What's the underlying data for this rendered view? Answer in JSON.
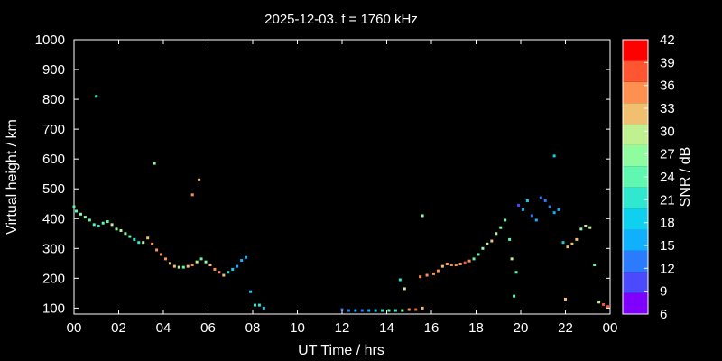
{
  "chart_data": {
    "type": "scatter",
    "title": "2025-12-03. f = 1760 kHz",
    "xlabel": "UT Time / hrs",
    "ylabel": "Virtual height / km",
    "xlim": [
      0,
      24
    ],
    "ylim": [
      80,
      1000
    ],
    "xticks": [
      "00",
      "02",
      "04",
      "06",
      "08",
      "10",
      "12",
      "14",
      "16",
      "18",
      "20",
      "22",
      "00"
    ],
    "yticks": [
      "100",
      "200",
      "300",
      "400",
      "500",
      "600",
      "700",
      "800",
      "900",
      "1000"
    ],
    "grid": false,
    "colorbar": {
      "label": "SNR / dB",
      "range": [
        6,
        42
      ],
      "ticks": [
        "42",
        "39",
        "36",
        "33",
        "30",
        "27",
        "24",
        "21",
        "18",
        "15",
        "12",
        "9",
        "6"
      ],
      "colors": [
        "#7f00ff",
        "#4a4aff",
        "#2a7bff",
        "#10b0ff",
        "#10d0f0",
        "#30e8d0",
        "#60f8b0",
        "#90fca0",
        "#c0f090",
        "#f0c070",
        "#ff9050",
        "#ff5530",
        "#ff0000"
      ]
    },
    "series": [
      {
        "values": [
          [
            0.0,
            440,
            24
          ],
          [
            0.1,
            425,
            24
          ],
          [
            0.3,
            415,
            27
          ],
          [
            0.5,
            405,
            27
          ],
          [
            0.7,
            395,
            24
          ],
          [
            0.9,
            380,
            24
          ],
          [
            1.1,
            375,
            21
          ],
          [
            1.3,
            385,
            24
          ],
          [
            1.5,
            390,
            24
          ],
          [
            1.7,
            380,
            30
          ],
          [
            1.9,
            365,
            27
          ],
          [
            2.1,
            360,
            30
          ],
          [
            2.3,
            350,
            27
          ],
          [
            2.5,
            340,
            24
          ],
          [
            2.7,
            330,
            21
          ],
          [
            2.9,
            320,
            21
          ],
          [
            3.1,
            320,
            30
          ],
          [
            3.3,
            335,
            33
          ],
          [
            3.5,
            315,
            36
          ],
          [
            3.7,
            295,
            36
          ],
          [
            3.9,
            280,
            36
          ],
          [
            4.1,
            265,
            36
          ],
          [
            4.3,
            250,
            33
          ],
          [
            4.5,
            240,
            33
          ],
          [
            4.7,
            237,
            30
          ],
          [
            4.9,
            237,
            24
          ],
          [
            5.1,
            240,
            33
          ],
          [
            5.3,
            245,
            36
          ],
          [
            5.5,
            255,
            30
          ],
          [
            5.7,
            265,
            24
          ],
          [
            5.9,
            255,
            27
          ],
          [
            6.1,
            245,
            33
          ],
          [
            6.3,
            230,
            36
          ],
          [
            6.5,
            220,
            36
          ],
          [
            6.7,
            210,
            33
          ],
          [
            6.9,
            220,
            21
          ],
          [
            7.1,
            230,
            18
          ],
          [
            7.3,
            240,
            15
          ],
          [
            7.5,
            260,
            15
          ],
          [
            7.7,
            270,
            15
          ],
          [
            7.9,
            155,
            18
          ],
          [
            8.1,
            110,
            21
          ],
          [
            8.3,
            110,
            21
          ],
          [
            8.5,
            100,
            18
          ],
          [
            1.0,
            810,
            21
          ],
          [
            3.6,
            585,
            27
          ],
          [
            5.3,
            480,
            36
          ],
          [
            5.6,
            530,
            33
          ]
        ]
      },
      {
        "values": [
          [
            12.0,
            95,
            12
          ],
          [
            12.3,
            92,
            12
          ],
          [
            12.6,
            92,
            15
          ],
          [
            12.9,
            92,
            12
          ],
          [
            13.2,
            92,
            15
          ],
          [
            13.5,
            92,
            18
          ],
          [
            13.8,
            92,
            21
          ],
          [
            14.1,
            92,
            24
          ],
          [
            14.4,
            92,
            21
          ],
          [
            14.7,
            92,
            27
          ],
          [
            15.0,
            95,
            36
          ],
          [
            15.3,
            95,
            39
          ],
          [
            15.6,
            100,
            33
          ],
          [
            14.6,
            195,
            21
          ],
          [
            14.8,
            165,
            30
          ],
          [
            15.6,
            410,
            27
          ],
          [
            15.5,
            205,
            36
          ],
          [
            15.8,
            210,
            36
          ],
          [
            16.1,
            215,
            36
          ],
          [
            16.3,
            225,
            36
          ],
          [
            16.5,
            240,
            33
          ],
          [
            16.7,
            248,
            36
          ],
          [
            16.9,
            245,
            36
          ],
          [
            17.1,
            245,
            36
          ],
          [
            17.3,
            248,
            36
          ],
          [
            17.5,
            252,
            39
          ],
          [
            17.7,
            258,
            36
          ],
          [
            17.9,
            265,
            24
          ],
          [
            18.1,
            280,
            24
          ],
          [
            18.3,
            300,
            27
          ],
          [
            18.5,
            315,
            30
          ],
          [
            18.7,
            325,
            33
          ],
          [
            18.9,
            350,
            30
          ],
          [
            19.1,
            370,
            27
          ],
          [
            19.3,
            395,
            24
          ],
          [
            19.5,
            330,
            24
          ],
          [
            19.6,
            265,
            30
          ],
          [
            19.7,
            140,
            24
          ],
          [
            19.8,
            220,
            24
          ],
          [
            19.9,
            445,
            9
          ],
          [
            20.1,
            430,
            15
          ],
          [
            20.3,
            460,
            18
          ],
          [
            20.5,
            410,
            12
          ],
          [
            20.7,
            395,
            15
          ],
          [
            20.9,
            470,
            12
          ],
          [
            21.1,
            460,
            12
          ],
          [
            21.3,
            440,
            12
          ],
          [
            21.5,
            420,
            15
          ],
          [
            21.7,
            430,
            15
          ],
          [
            21.9,
            320,
            18
          ],
          [
            22.1,
            305,
            33
          ],
          [
            22.3,
            315,
            33
          ],
          [
            22.5,
            330,
            33
          ],
          [
            22.7,
            365,
            27
          ],
          [
            22.9,
            375,
            30
          ],
          [
            23.1,
            370,
            30
          ],
          [
            23.3,
            245,
            24
          ],
          [
            23.5,
            120,
            30
          ],
          [
            23.7,
            112,
            39
          ],
          [
            23.9,
            105,
            39
          ],
          [
            21.5,
            610,
            18
          ],
          [
            22.0,
            130,
            33
          ]
        ]
      }
    ]
  }
}
